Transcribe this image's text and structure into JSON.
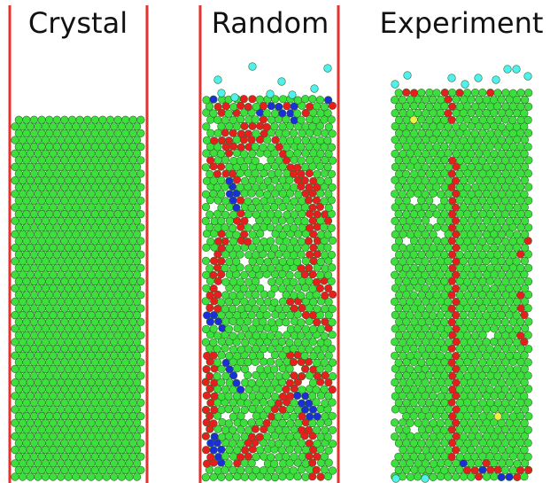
{
  "panels": [
    {
      "title": "Crystal"
    },
    {
      "title": "Random"
    },
    {
      "title": "Experiment"
    }
  ]
}
